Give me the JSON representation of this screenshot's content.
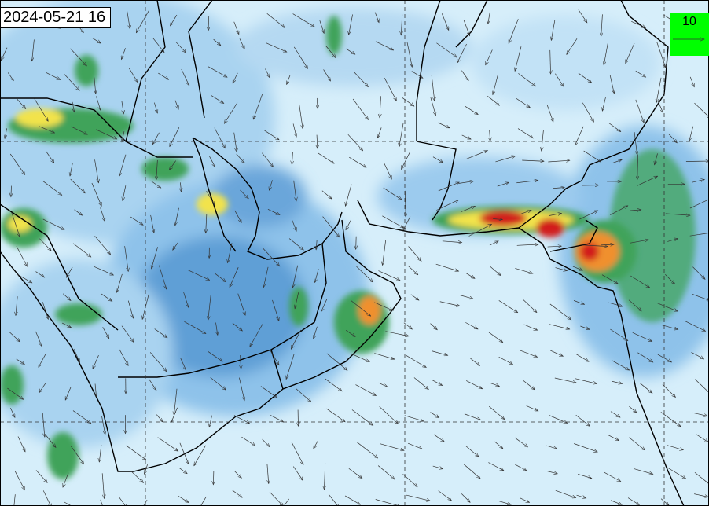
{
  "map": {
    "timestamp": "2024-05-21 16",
    "reference_vector": {
      "label": "10",
      "background": "#00ff00"
    },
    "colors": {
      "ocean_light": "#d6eefa",
      "low": "#a9d3f0",
      "mid": "#5f9fd6",
      "green": "#3fa35a",
      "yellow": "#f2e34c",
      "orange": "#f0902e",
      "red": "#d21e1e"
    },
    "layers": [
      "coastlines",
      "borders",
      "lat-lon grid",
      "wind vectors",
      "shaded field"
    ]
  }
}
